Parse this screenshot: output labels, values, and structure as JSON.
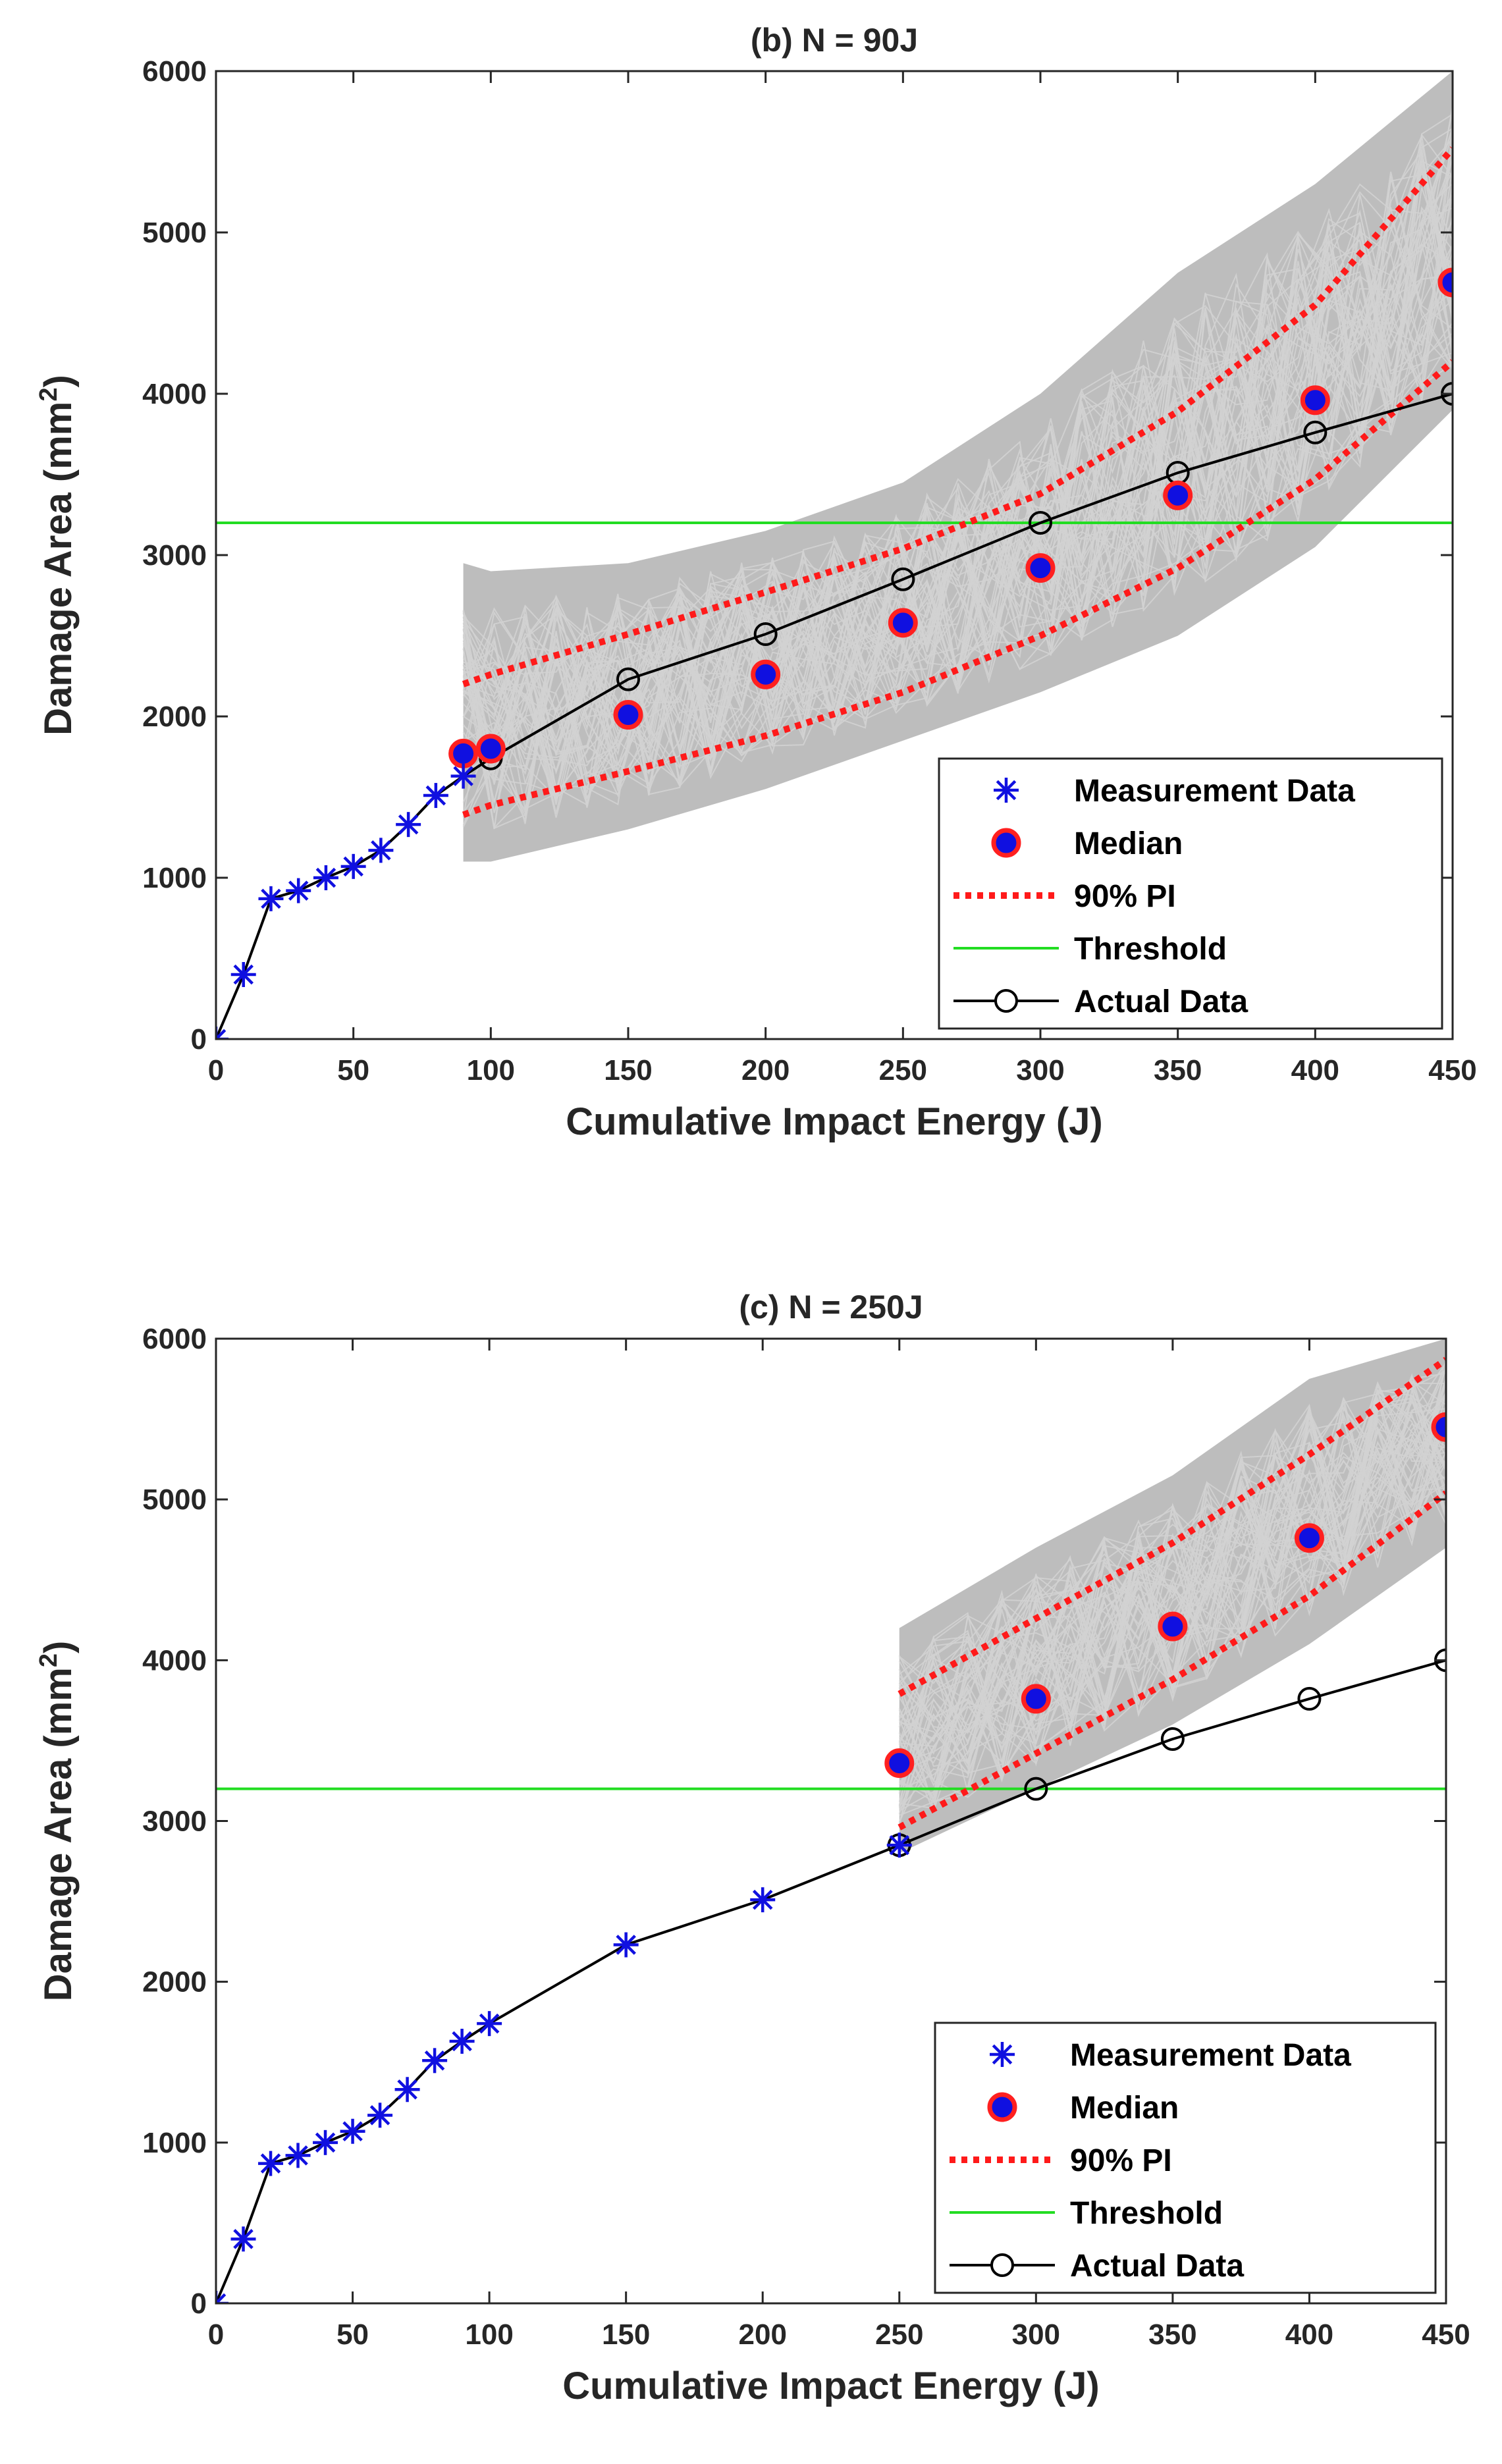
{
  "chart_data": [
    {
      "type": "line",
      "title": "(b) N = 90J",
      "xlabel": "Cumulative Impact Energy (J)",
      "ylabel": "Damage Area (mm",
      "ylabel_sup": "2",
      "ylabel_end": ")",
      "xlim": [
        0,
        450
      ],
      "ylim": [
        0,
        6000
      ],
      "xticks": [
        0,
        50,
        100,
        150,
        200,
        250,
        300,
        350,
        400,
        450
      ],
      "yticks": [
        0,
        1000,
        2000,
        3000,
        4000,
        5000,
        6000
      ],
      "grid": false,
      "legend_position": "lower-right",
      "legend": [
        "Measurement Data",
        "Median",
        "90% PI",
        "Threshold",
        "Actual Data"
      ],
      "colors": {
        "measurement": "#1010e0",
        "median_fill": "#1010e0",
        "median_edge": "#ff2020",
        "pi": "#ff1a1a",
        "threshold": "#22dd22",
        "actual": "#000000",
        "band": "#bdbdbd",
        "band_lines": "#d2d2d2"
      },
      "threshold": 3200,
      "measurement_data": {
        "x": [
          0,
          10,
          20,
          30,
          40,
          50,
          60,
          70,
          80,
          90
        ],
        "y": [
          0,
          400,
          870,
          920,
          1000,
          1070,
          1170,
          1330,
          1510,
          1630
        ]
      },
      "actual_data": {
        "x": [
          0,
          10,
          20,
          30,
          40,
          50,
          60,
          70,
          80,
          90,
          100,
          150,
          200,
          250,
          300,
          350,
          400,
          450
        ],
        "y": [
          0,
          400,
          870,
          920,
          1000,
          1070,
          1170,
          1330,
          1510,
          1630,
          1740,
          2230,
          2510,
          2850,
          3200,
          3510,
          3760,
          4000
        ],
        "markers_x": [
          100,
          150,
          200,
          250,
          300,
          350,
          400,
          450
        ]
      },
      "median": {
        "x": [
          90,
          100,
          150,
          200,
          250,
          300,
          350,
          400,
          450
        ],
        "y": [
          1770,
          1800,
          2010,
          2260,
          2580,
          2920,
          3370,
          3960,
          4690
        ]
      },
      "pi_upper": {
        "x": [
          90,
          100,
          150,
          200,
          250,
          300,
          350,
          400,
          450
        ],
        "y": [
          2200,
          2260,
          2510,
          2770,
          3040,
          3380,
          3890,
          4550,
          5520
        ]
      },
      "pi_lower": {
        "x": [
          90,
          100,
          150,
          200,
          250,
          300,
          350,
          400,
          450
        ],
        "y": [
          1390,
          1450,
          1660,
          1880,
          2150,
          2500,
          2920,
          3470,
          4200
        ]
      },
      "band_top": {
        "x": [
          90,
          100,
          150,
          200,
          250,
          300,
          350,
          400,
          450
        ],
        "y": [
          2950,
          2900,
          2950,
          3150,
          3450,
          4000,
          4750,
          5300,
          6000
        ]
      },
      "band_bottom": {
        "x": [
          90,
          100,
          150,
          200,
          250,
          300,
          350,
          400,
          450
        ],
        "y": [
          1100,
          1100,
          1300,
          1550,
          1850,
          2150,
          2500,
          3050,
          3900
        ]
      }
    },
    {
      "type": "line",
      "title": "(c) N = 250J",
      "xlabel": "Cumulative Impact Energy (J)",
      "ylabel": "Damage Area (mm",
      "ylabel_sup": "2",
      "ylabel_end": ")",
      "xlim": [
        0,
        450
      ],
      "ylim": [
        0,
        6000
      ],
      "xticks": [
        0,
        50,
        100,
        150,
        200,
        250,
        300,
        350,
        400,
        450
      ],
      "yticks": [
        0,
        1000,
        2000,
        3000,
        4000,
        5000,
        6000
      ],
      "grid": false,
      "legend_position": "lower-right",
      "legend": [
        "Measurement Data",
        "Median",
        "90% PI",
        "Threshold",
        "Actual Data"
      ],
      "colors": {
        "measurement": "#1010e0",
        "median_fill": "#1010e0",
        "median_edge": "#ff2020",
        "pi": "#ff1a1a",
        "threshold": "#22dd22",
        "actual": "#000000",
        "band": "#bdbdbd",
        "band_lines": "#d2d2d2"
      },
      "threshold": 3200,
      "measurement_data": {
        "x": [
          0,
          10,
          20,
          30,
          40,
          50,
          60,
          70,
          80,
          90,
          100,
          150,
          200,
          250
        ],
        "y": [
          0,
          400,
          870,
          920,
          1000,
          1070,
          1170,
          1330,
          1510,
          1630,
          1740,
          2230,
          2510,
          2850
        ]
      },
      "actual_data": {
        "x": [
          0,
          10,
          20,
          30,
          40,
          50,
          60,
          70,
          80,
          90,
          100,
          150,
          200,
          250,
          300,
          350,
          400,
          450
        ],
        "y": [
          0,
          400,
          870,
          920,
          1000,
          1070,
          1170,
          1330,
          1510,
          1630,
          1740,
          2230,
          2510,
          2850,
          3200,
          3510,
          3760,
          4000
        ],
        "markers_x": [
          250,
          300,
          350,
          400,
          450
        ]
      },
      "median": {
        "x": [
          250,
          300,
          350,
          400,
          450
        ],
        "y": [
          3360,
          3760,
          4210,
          4760,
          5450
        ]
      },
      "pi_upper": {
        "x": [
          250,
          300,
          350,
          400,
          450
        ],
        "y": [
          3790,
          4260,
          4730,
          5280,
          5870
        ]
      },
      "pi_lower": {
        "x": [
          250,
          300,
          350,
          400,
          450
        ],
        "y": [
          2960,
          3420,
          3880,
          4400,
          5040
        ]
      },
      "band_top": {
        "x": [
          250,
          300,
          350,
          400,
          450
        ],
        "y": [
          4200,
          4700,
          5150,
          5750,
          6000
        ]
      },
      "band_bottom": {
        "x": [
          250,
          300,
          350,
          400,
          450
        ],
        "y": [
          2800,
          3200,
          3600,
          4100,
          4700
        ]
      }
    }
  ]
}
